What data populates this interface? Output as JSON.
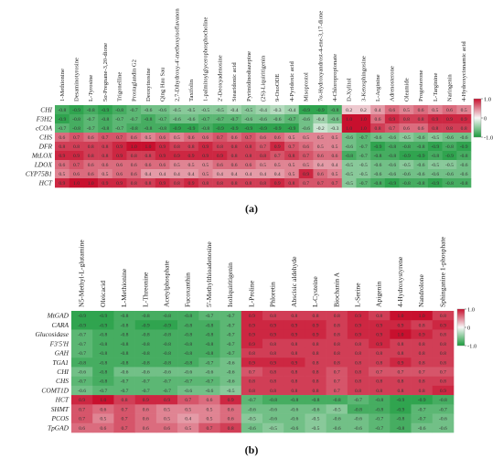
{
  "colors": {
    "high": "#c8102e",
    "mid": "#f7f7f7",
    "low": "#1a9b3c"
  },
  "chart_data": [
    {
      "type": "heatmap",
      "panel_label": "(a)",
      "x": [
        "1-Methionine",
        "Desaminotyrosine",
        "L-Tyrosine",
        "5α-Pregnane-3,20-dione",
        "Trigonelline",
        "Prostaglandin G2",
        "Deoxyinosine",
        "Qing Hau Sau",
        "2,7-Dihydroxy-4'-methoxyisoflavanon",
        "Taxifolin",
        "1-palmitoylglycerophosphocholine",
        "2'-Deoxyadenosine",
        "Stearidonic acid",
        "Pyrimidinodiazepine",
        "(2S)-Liquiritigenin",
        "9-OxoODE",
        "4-Pyridoxic acid",
        "Misoprostol",
        "7α-Hydroxyandrost-4-ene-3,17-dione",
        "4-Chloropropionate",
        "D-Xylitol",
        "3-Ketosphingosine",
        "L-Arginine",
        "Adrenosterone",
        "Oleamide",
        "Progesterone",
        "L-Targinine",
        "Naringenin",
        "4-Hydroxycinnamic acid"
      ],
      "y": [
        "CHI",
        "F3H2",
        "cCOA",
        "CHS",
        "DFR",
        "MtLOX",
        "LDOX",
        "CYP75B1",
        "HCT"
      ],
      "values": [
        [
          -0.8,
          -0.9,
          -0.8,
          -0.9,
          -0.8,
          -0.7,
          -0.6,
          -0.6,
          -0.5,
          -0.5,
          -0.5,
          -0.5,
          -0.4,
          -0.5,
          -0.4,
          -0.3,
          -0.4,
          -0.9,
          -0.9,
          -0.8,
          0.2,
          0.2,
          0.4,
          0.6,
          0.5,
          0.6,
          0.5,
          0.6,
          0.5
        ],
        [
          -0.9,
          -0.8,
          -0.7,
          -0.8,
          -0.7,
          -0.7,
          -0.8,
          -0.7,
          -0.6,
          -0.6,
          -0.7,
          -0.7,
          -0.7,
          -0.6,
          -0.6,
          -0.6,
          -0.7,
          -0.6,
          -0.4,
          -0.6,
          1.0,
          1.0,
          0.6,
          0.9,
          0.8,
          0.8,
          0.9,
          0.9,
          0.9
        ],
        [
          -0.7,
          -0.8,
          -0.7,
          -0.8,
          -0.7,
          -0.8,
          -0.8,
          -0.8,
          -0.9,
          -0.9,
          -0.8,
          -0.9,
          -0.9,
          -0.9,
          -0.9,
          -0.9,
          -0.9,
          -0.6,
          -0.2,
          -0.3,
          1.0,
          1.0,
          0.8,
          0.7,
          0.6,
          0.6,
          0.8,
          0.8,
          0.8
        ],
        [
          0.6,
          0.7,
          0.6,
          0.7,
          0.7,
          0.6,
          0.5,
          0.6,
          0.5,
          0.6,
          0.6,
          0.7,
          0.6,
          0.7,
          0.6,
          0.6,
          0.5,
          0.5,
          0.5,
          0.5,
          -0.6,
          -0.7,
          -0.6,
          -0.6,
          -0.5,
          -0.6,
          -0.5,
          -0.6,
          -0.6
        ],
        [
          0.8,
          0.8,
          0.8,
          0.8,
          0.9,
          1.0,
          1.0,
          0.9,
          0.8,
          0.8,
          0.9,
          0.8,
          0.8,
          0.8,
          0.7,
          0.9,
          0.7,
          0.6,
          0.5,
          0.5,
          -0.6,
          -0.7,
          -0.9,
          -0.8,
          -0.8,
          -0.8,
          -0.9,
          -0.8,
          -0.9
        ],
        [
          0.9,
          0.9,
          0.8,
          0.8,
          0.9,
          0.8,
          0.8,
          0.9,
          0.9,
          0.9,
          0.9,
          0.9,
          0.8,
          0.8,
          0.8,
          0.7,
          0.8,
          0.7,
          0.6,
          0.6,
          -0.8,
          -0.7,
          -0.8,
          -0.8,
          -0.9,
          -0.9,
          -0.8,
          -0.9,
          -0.8
        ],
        [
          0.6,
          0.7,
          0.6,
          0.6,
          0.6,
          0.6,
          0.6,
          0.6,
          0.5,
          0.5,
          0.5,
          0.6,
          0.6,
          0.6,
          0.5,
          0.5,
          0.5,
          0.5,
          0.4,
          0.4,
          -0.5,
          -0.5,
          -0.6,
          -0.6,
          -0.5,
          -0.6,
          -0.5,
          -0.5,
          -0.6
        ],
        [
          0.5,
          0.6,
          0.6,
          0.5,
          0.6,
          0.6,
          0.4,
          0.4,
          0.4,
          0.4,
          0.5,
          0.4,
          0.4,
          0.4,
          0.4,
          0.4,
          0.5,
          0.9,
          0.6,
          0.5,
          -0.5,
          -0.5,
          -0.6,
          -0.6,
          -0.6,
          -0.6,
          -0.6,
          -0.6,
          -0.6
        ],
        [
          0.9,
          1.0,
          1.0,
          0.9,
          0.9,
          0.8,
          0.8,
          0.9,
          0.8,
          0.9,
          0.8,
          0.8,
          0.8,
          0.8,
          0.8,
          0.9,
          0.8,
          0.7,
          0.7,
          0.7,
          -0.5,
          -0.7,
          -0.8,
          -0.9,
          -0.8,
          -0.8,
          -0.9,
          -0.8,
          -0.8
        ]
      ],
      "colorbar_ticks": [
        "1.0",
        "0",
        "-1.0"
      ],
      "range": [
        -1.0,
        1.0
      ]
    },
    {
      "type": "heatmap",
      "panel_label": "(b)",
      "x": [
        "N5-Methyl-L-glutamine",
        "Oleicacid",
        "L-Methionine",
        "L-Threonine",
        "Acetylphosphate",
        "Fucoxanthin",
        "5'-Methylthioadenosine",
        "Isoliquiritigenin",
        "L-Proline",
        "Phloretin",
        "Abscisic aldehyde",
        "L-Cysteine",
        "Biochanin A",
        "L-Serine",
        "Apigenin",
        "4-Hydroxystyrene",
        "Nandrolone",
        "Sphinganine 1-phosphate"
      ],
      "y": [
        "MtGAD",
        "CARA",
        "Glucosidase",
        "F3'5'H",
        "GAH",
        "TGA1",
        "CHI",
        "CHS",
        "COMT1D",
        "HCT",
        "SHMT",
        "PCOS",
        "TpGAD"
      ],
      "values": [
        [
          -0.9,
          -0.9,
          -0.8,
          -0.8,
          -0.8,
          -0.8,
          -0.7,
          -0.7,
          0.9,
          0.8,
          0.8,
          0.8,
          0.8,
          0.9,
          0.8,
          1.0,
          1.0,
          0.8
        ],
        [
          -0.9,
          -0.9,
          -0.8,
          -0.9,
          -0.9,
          -0.8,
          -0.8,
          -0.7,
          0.9,
          0.9,
          0.9,
          0.9,
          0.8,
          0.9,
          0.9,
          0.9,
          0.8,
          0.9
        ],
        [
          -0.7,
          -0.8,
          -0.8,
          -0.8,
          -0.8,
          -0.8,
          -0.8,
          -0.7,
          0.9,
          0.9,
          0.9,
          0.9,
          0.8,
          0.9,
          0.9,
          1.0,
          0.9,
          0.8
        ],
        [
          -0.7,
          -0.8,
          -0.8,
          -0.8,
          -0.8,
          -0.8,
          -0.8,
          -0.7,
          0.9,
          0.8,
          0.8,
          0.8,
          0.8,
          0.8,
          0.9,
          0.8,
          0.8,
          0.8
        ],
        [
          -0.7,
          -0.8,
          -0.8,
          -0.8,
          -0.8,
          -0.8,
          -0.8,
          -0.7,
          0.8,
          0.8,
          0.8,
          0.8,
          0.8,
          0.8,
          0.8,
          0.8,
          0.8,
          0.8
        ],
        [
          -0.8,
          -0.8,
          -0.8,
          -0.8,
          -0.8,
          -0.8,
          -0.7,
          -0.6,
          0.9,
          0.9,
          0.9,
          0.8,
          0.8,
          0.8,
          0.8,
          0.9,
          0.8,
          0.8
        ],
        [
          -0.6,
          -0.8,
          -0.6,
          -0.6,
          -0.6,
          -0.6,
          -0.6,
          -0.6,
          0.7,
          0.8,
          0.8,
          0.8,
          0.7,
          0.8,
          0.7,
          0.7,
          0.7,
          0.7
        ],
        [
          -0.7,
          -0.8,
          -0.7,
          -0.7,
          -0.7,
          -0.7,
          -0.7,
          -0.6,
          0.8,
          0.8,
          0.8,
          0.8,
          0.7,
          0.8,
          0.8,
          0.8,
          0.8,
          0.8
        ],
        [
          -0.6,
          -0.7,
          -0.7,
          -0.7,
          -0.7,
          -0.6,
          -0.6,
          -0.5,
          0.8,
          0.8,
          0.8,
          0.8,
          0.7,
          0.8,
          0.8,
          0.8,
          0.8,
          0.9
        ],
        [
          0.9,
          1.0,
          0.8,
          0.9,
          0.9,
          0.7,
          0.6,
          0.9,
          -0.7,
          -0.8,
          -0.8,
          -0.8,
          -0.8,
          -0.7,
          -0.8,
          -0.9,
          -0.9,
          -0.8
        ],
        [
          0.7,
          0.6,
          0.7,
          0.6,
          0.5,
          0.5,
          0.5,
          0.6,
          -0.6,
          -0.6,
          -0.6,
          -0.6,
          -0.5,
          -0.8,
          -0.8,
          -0.9,
          -0.7,
          -0.7
        ],
        [
          0.7,
          0.5,
          0.7,
          0.6,
          0.5,
          0.4,
          0.5,
          0.6,
          -0.5,
          -0.6,
          -0.6,
          -0.5,
          -0.6,
          -0.6,
          -0.7,
          -0.8,
          -0.7,
          -0.6
        ],
        [
          0.6,
          0.6,
          0.7,
          0.6,
          0.6,
          0.5,
          0.7,
          0.8,
          -0.6,
          -0.5,
          -0.6,
          -0.5,
          -0.6,
          -0.6,
          -0.7,
          -0.8,
          -0.6,
          -0.6
        ]
      ],
      "colorbar_ticks": [
        "1.0",
        "0",
        "-1.0"
      ],
      "range": [
        -1.0,
        1.0
      ]
    }
  ]
}
